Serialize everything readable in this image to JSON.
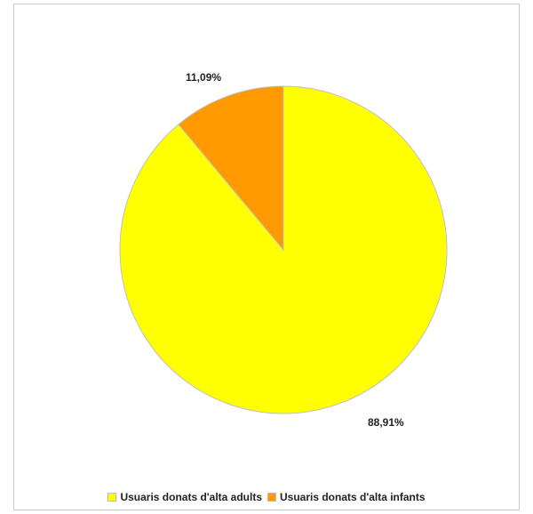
{
  "chart_data": {
    "type": "pie",
    "categories": [
      "Usuaris donats d'alta adults",
      "Usuaris donats d'alta infants"
    ],
    "values": [
      88.91,
      11.09
    ],
    "data_labels": [
      "88,91%",
      "11,09%"
    ],
    "colors": [
      "#ffff00",
      "#ff9900"
    ],
    "start_angle_deg": 0,
    "direction": "clockwise",
    "legend_position": "bottom",
    "title": ""
  }
}
